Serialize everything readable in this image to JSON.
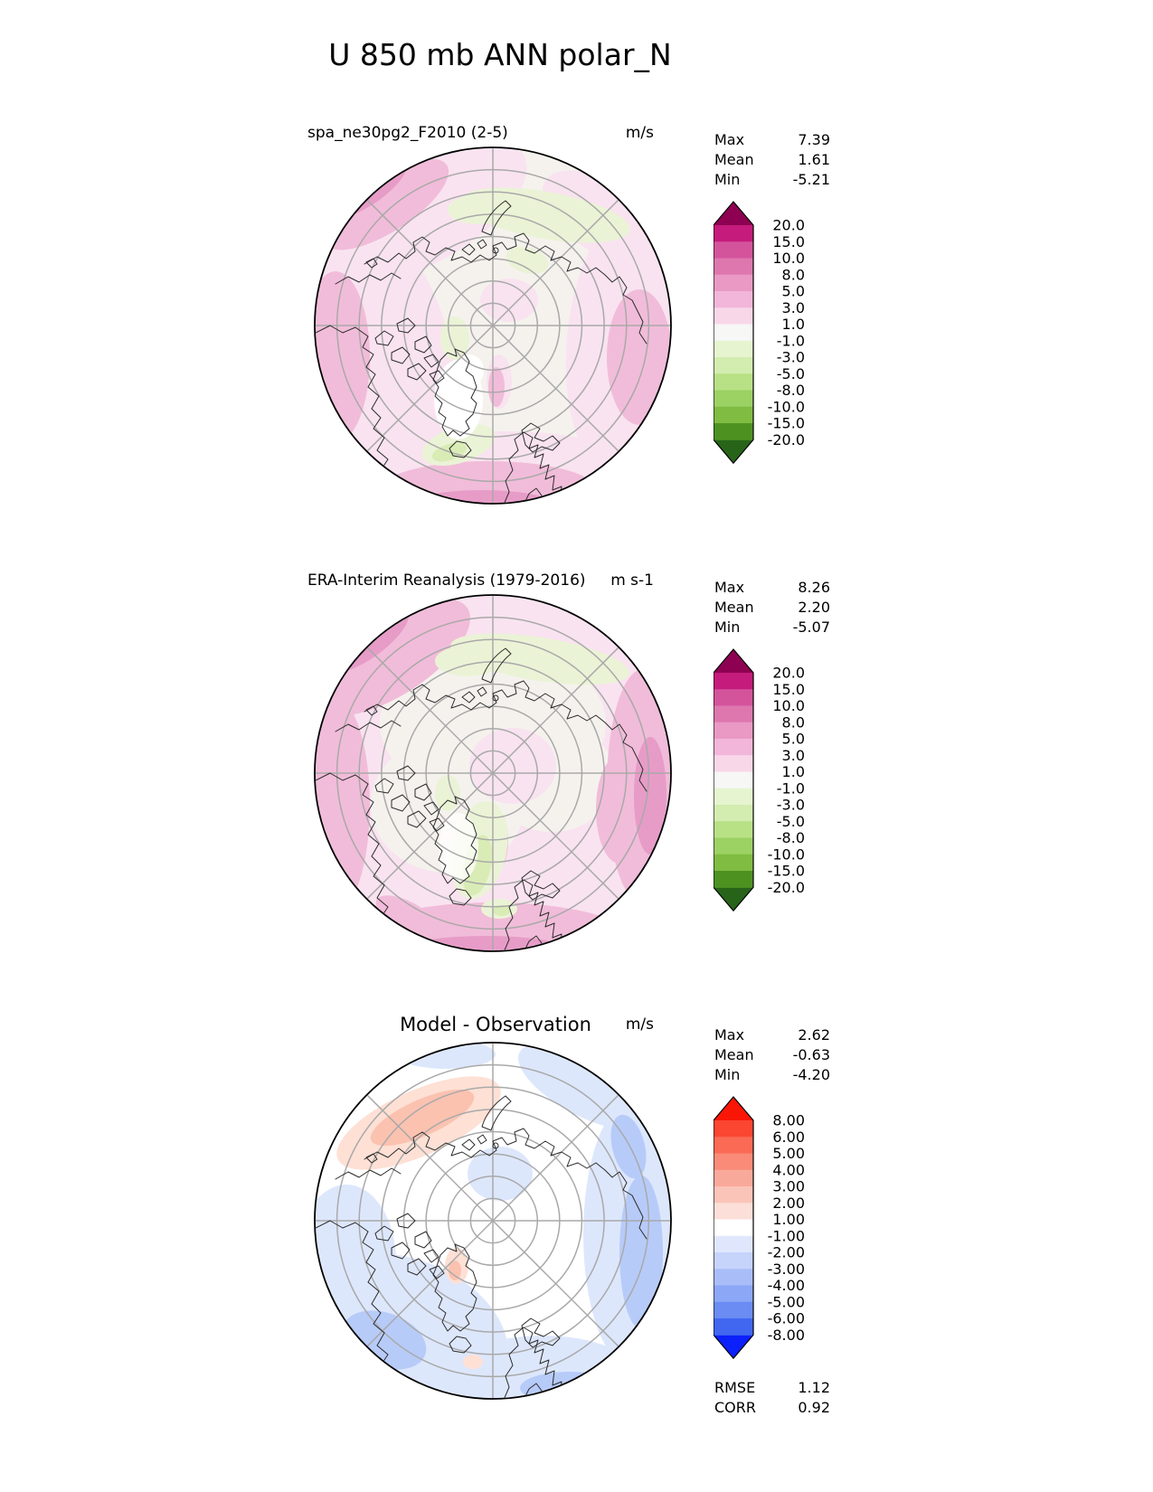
{
  "figure_title": "U 850 mb ANN polar_N",
  "palette": {
    "map_bg": "#f5f2ee",
    "pink_pale": "#f9e3f0",
    "pink_light": "#f1bcd9",
    "pink_med": "#e79cc8",
    "green_pale": "#ebf3d6",
    "green_light": "#d9ecb6",
    "white": "#ffffff",
    "blue_pale": "#dde7fc",
    "blue_light": "#b7cbf9",
    "red_pale": "#fee0d5",
    "red_light": "#fbc2b0",
    "graticule": "#a9a9a9",
    "coastline": "#2b2b2b",
    "map_border": "#000000"
  },
  "panels": [
    {
      "subtitle": "spa_ne30pg2_F2010 (2-5)",
      "units": "m/s",
      "stats": [
        {
          "label": "Max",
          "value": "7.39"
        },
        {
          "label": "Mean",
          "value": "1.61"
        },
        {
          "label": "Min",
          "value": "-5.21"
        }
      ],
      "colorbar": {
        "arrow_top": "#8e0152",
        "arrow_bottom": "#276419",
        "segments": [
          "#c51b7d",
          "#d4549c",
          "#de77ae",
          "#e999c4",
          "#f1b6da",
          "#f8d7e9",
          "#f7f7f6",
          "#e6f5d0",
          "#d3ecb0",
          "#b8e186",
          "#9cd164",
          "#7fbc41",
          "#4d9221"
        ],
        "ticks": [
          "20.0",
          "15.0",
          "10.0",
          "8.0",
          "5.0",
          "3.0",
          "1.0",
          "-1.0",
          "-3.0",
          "-5.0",
          "-8.0",
          "-10.0",
          "-15.0",
          "-20.0"
        ]
      }
    },
    {
      "subtitle": "ERA-Interim Reanalysis (1979-2016)",
      "units": "m s-1",
      "stats": [
        {
          "label": "Max",
          "value": "8.26"
        },
        {
          "label": "Mean",
          "value": "2.20"
        },
        {
          "label": "Min",
          "value": "-5.07"
        }
      ],
      "colorbar": {
        "arrow_top": "#8e0152",
        "arrow_bottom": "#276419",
        "segments": [
          "#c51b7d",
          "#d4549c",
          "#de77ae",
          "#e999c4",
          "#f1b6da",
          "#f8d7e9",
          "#f7f7f6",
          "#e6f5d0",
          "#d3ecb0",
          "#b8e186",
          "#9cd164",
          "#7fbc41",
          "#4d9221"
        ],
        "ticks": [
          "20.0",
          "15.0",
          "10.0",
          "8.0",
          "5.0",
          "3.0",
          "1.0",
          "-1.0",
          "-3.0",
          "-5.0",
          "-8.0",
          "-10.0",
          "-15.0",
          "-20.0"
        ]
      }
    },
    {
      "subtitle": "Model - Observation",
      "units": "m/s",
      "stats": [
        {
          "label": "Max",
          "value": "2.62"
        },
        {
          "label": "Mean",
          "value": "-0.63"
        },
        {
          "label": "Min",
          "value": "-4.20"
        }
      ],
      "colorbar": {
        "arrow_top": "#f91607",
        "arrow_bottom": "#0c20fb",
        "segments": [
          "#fb4632",
          "#fa6a55",
          "#f98b78",
          "#f9a99a",
          "#fac4b9",
          "#fcdfd8",
          "#ffffff",
          "#e0e7fd",
          "#c6d3fb",
          "#a9bef9",
          "#8ba7f6",
          "#6a8cf3",
          "#4166f0"
        ],
        "ticks": [
          "8.00",
          "6.00",
          "5.00",
          "4.00",
          "3.00",
          "2.00",
          "1.00",
          "-1.00",
          "-2.00",
          "-3.00",
          "-4.00",
          "-5.00",
          "-6.00",
          "-8.00"
        ]
      },
      "extra_stats": [
        {
          "label": "RMSE",
          "value": "1.12"
        },
        {
          "label": "CORR",
          "value": "0.92"
        }
      ]
    }
  ],
  "chart_data": [
    {
      "type": "heatmap",
      "title": "spa_ne30pg2_F2010 (2-5)",
      "variable": "U 850 mb",
      "season": "ANN",
      "region": "polar_N",
      "projection": "north polar stereographic, lat 50N-90N, graticule every 5 deg lat / 45 deg lon",
      "units": "m/s",
      "levels": [
        -20,
        -15,
        -10,
        -8,
        -5,
        -3,
        -1,
        1,
        3,
        5,
        8,
        10,
        15,
        20
      ],
      "colormap": "PiYG reversed (pink = positive, green = negative), extended arrows both ends",
      "stats": {
        "max": 7.39,
        "mean": 1.61,
        "min": -5.21
      }
    },
    {
      "type": "heatmap",
      "title": "ERA-Interim Reanalysis (1979-2016)",
      "variable": "U 850 mb",
      "season": "ANN",
      "region": "polar_N",
      "projection": "north polar stereographic, lat 50N-90N, graticule every 5 deg lat / 45 deg lon",
      "units": "m s-1",
      "levels": [
        -20,
        -15,
        -10,
        -8,
        -5,
        -3,
        -1,
        1,
        3,
        5,
        8,
        10,
        15,
        20
      ],
      "colormap": "PiYG reversed (pink = positive, green = negative), extended arrows both ends",
      "stats": {
        "max": 8.26,
        "mean": 2.2,
        "min": -5.07
      }
    },
    {
      "type": "heatmap",
      "title": "Model - Observation",
      "variable": "U 850 mb difference",
      "season": "ANN",
      "region": "polar_N",
      "projection": "north polar stereographic, lat 50N-90N, graticule every 5 deg lat / 45 deg lon",
      "units": "m/s",
      "levels": [
        -8,
        -6,
        -5,
        -4,
        -3,
        -2,
        -1,
        1,
        2,
        3,
        4,
        5,
        6,
        8
      ],
      "colormap": "red-white-blue diverging (red = positive bias, blue = negative bias), extended arrows both ends",
      "stats": {
        "max": 2.62,
        "mean": -0.63,
        "min": -4.2,
        "rmse": 1.12,
        "corr": 0.92
      }
    }
  ]
}
